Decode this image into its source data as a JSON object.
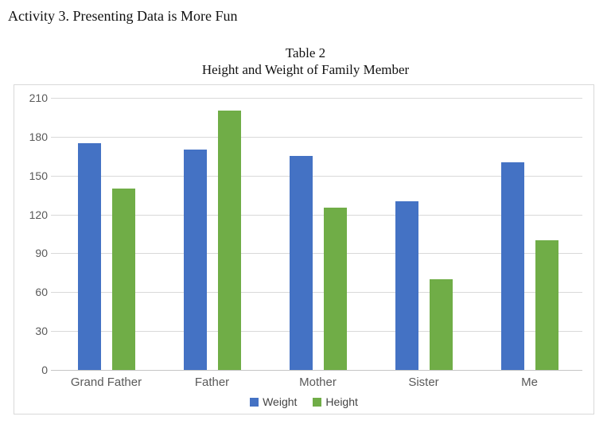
{
  "page": {
    "heading": "Activity 3. Presenting Data is More Fun"
  },
  "chart": {
    "title_line1": "Table 2",
    "title_line2": "Height and Weight of Family Member"
  },
  "chart_data": {
    "type": "bar",
    "title": "Table 2",
    "subtitle": "Height and Weight of Family Member",
    "categories": [
      "Grand Father",
      "Father",
      "Mother",
      "Sister",
      "Me"
    ],
    "series": [
      {
        "name": "Weight",
        "color": "#4472C4",
        "values": [
          175,
          170,
          165,
          130,
          160
        ]
      },
      {
        "name": "Height",
        "color": "#70AD47",
        "values": [
          140,
          200,
          125,
          70,
          100
        ]
      }
    ],
    "xlabel": "",
    "ylabel": "",
    "ylim": [
      0,
      210
    ],
    "yticks": [
      0,
      30,
      60,
      90,
      120,
      150,
      180,
      210
    ],
    "grid": true,
    "legend_position": "bottom",
    "colors": {
      "gridline": "#d9d9d9",
      "axis_text": "#595959",
      "border": "#d9d9d9"
    }
  }
}
